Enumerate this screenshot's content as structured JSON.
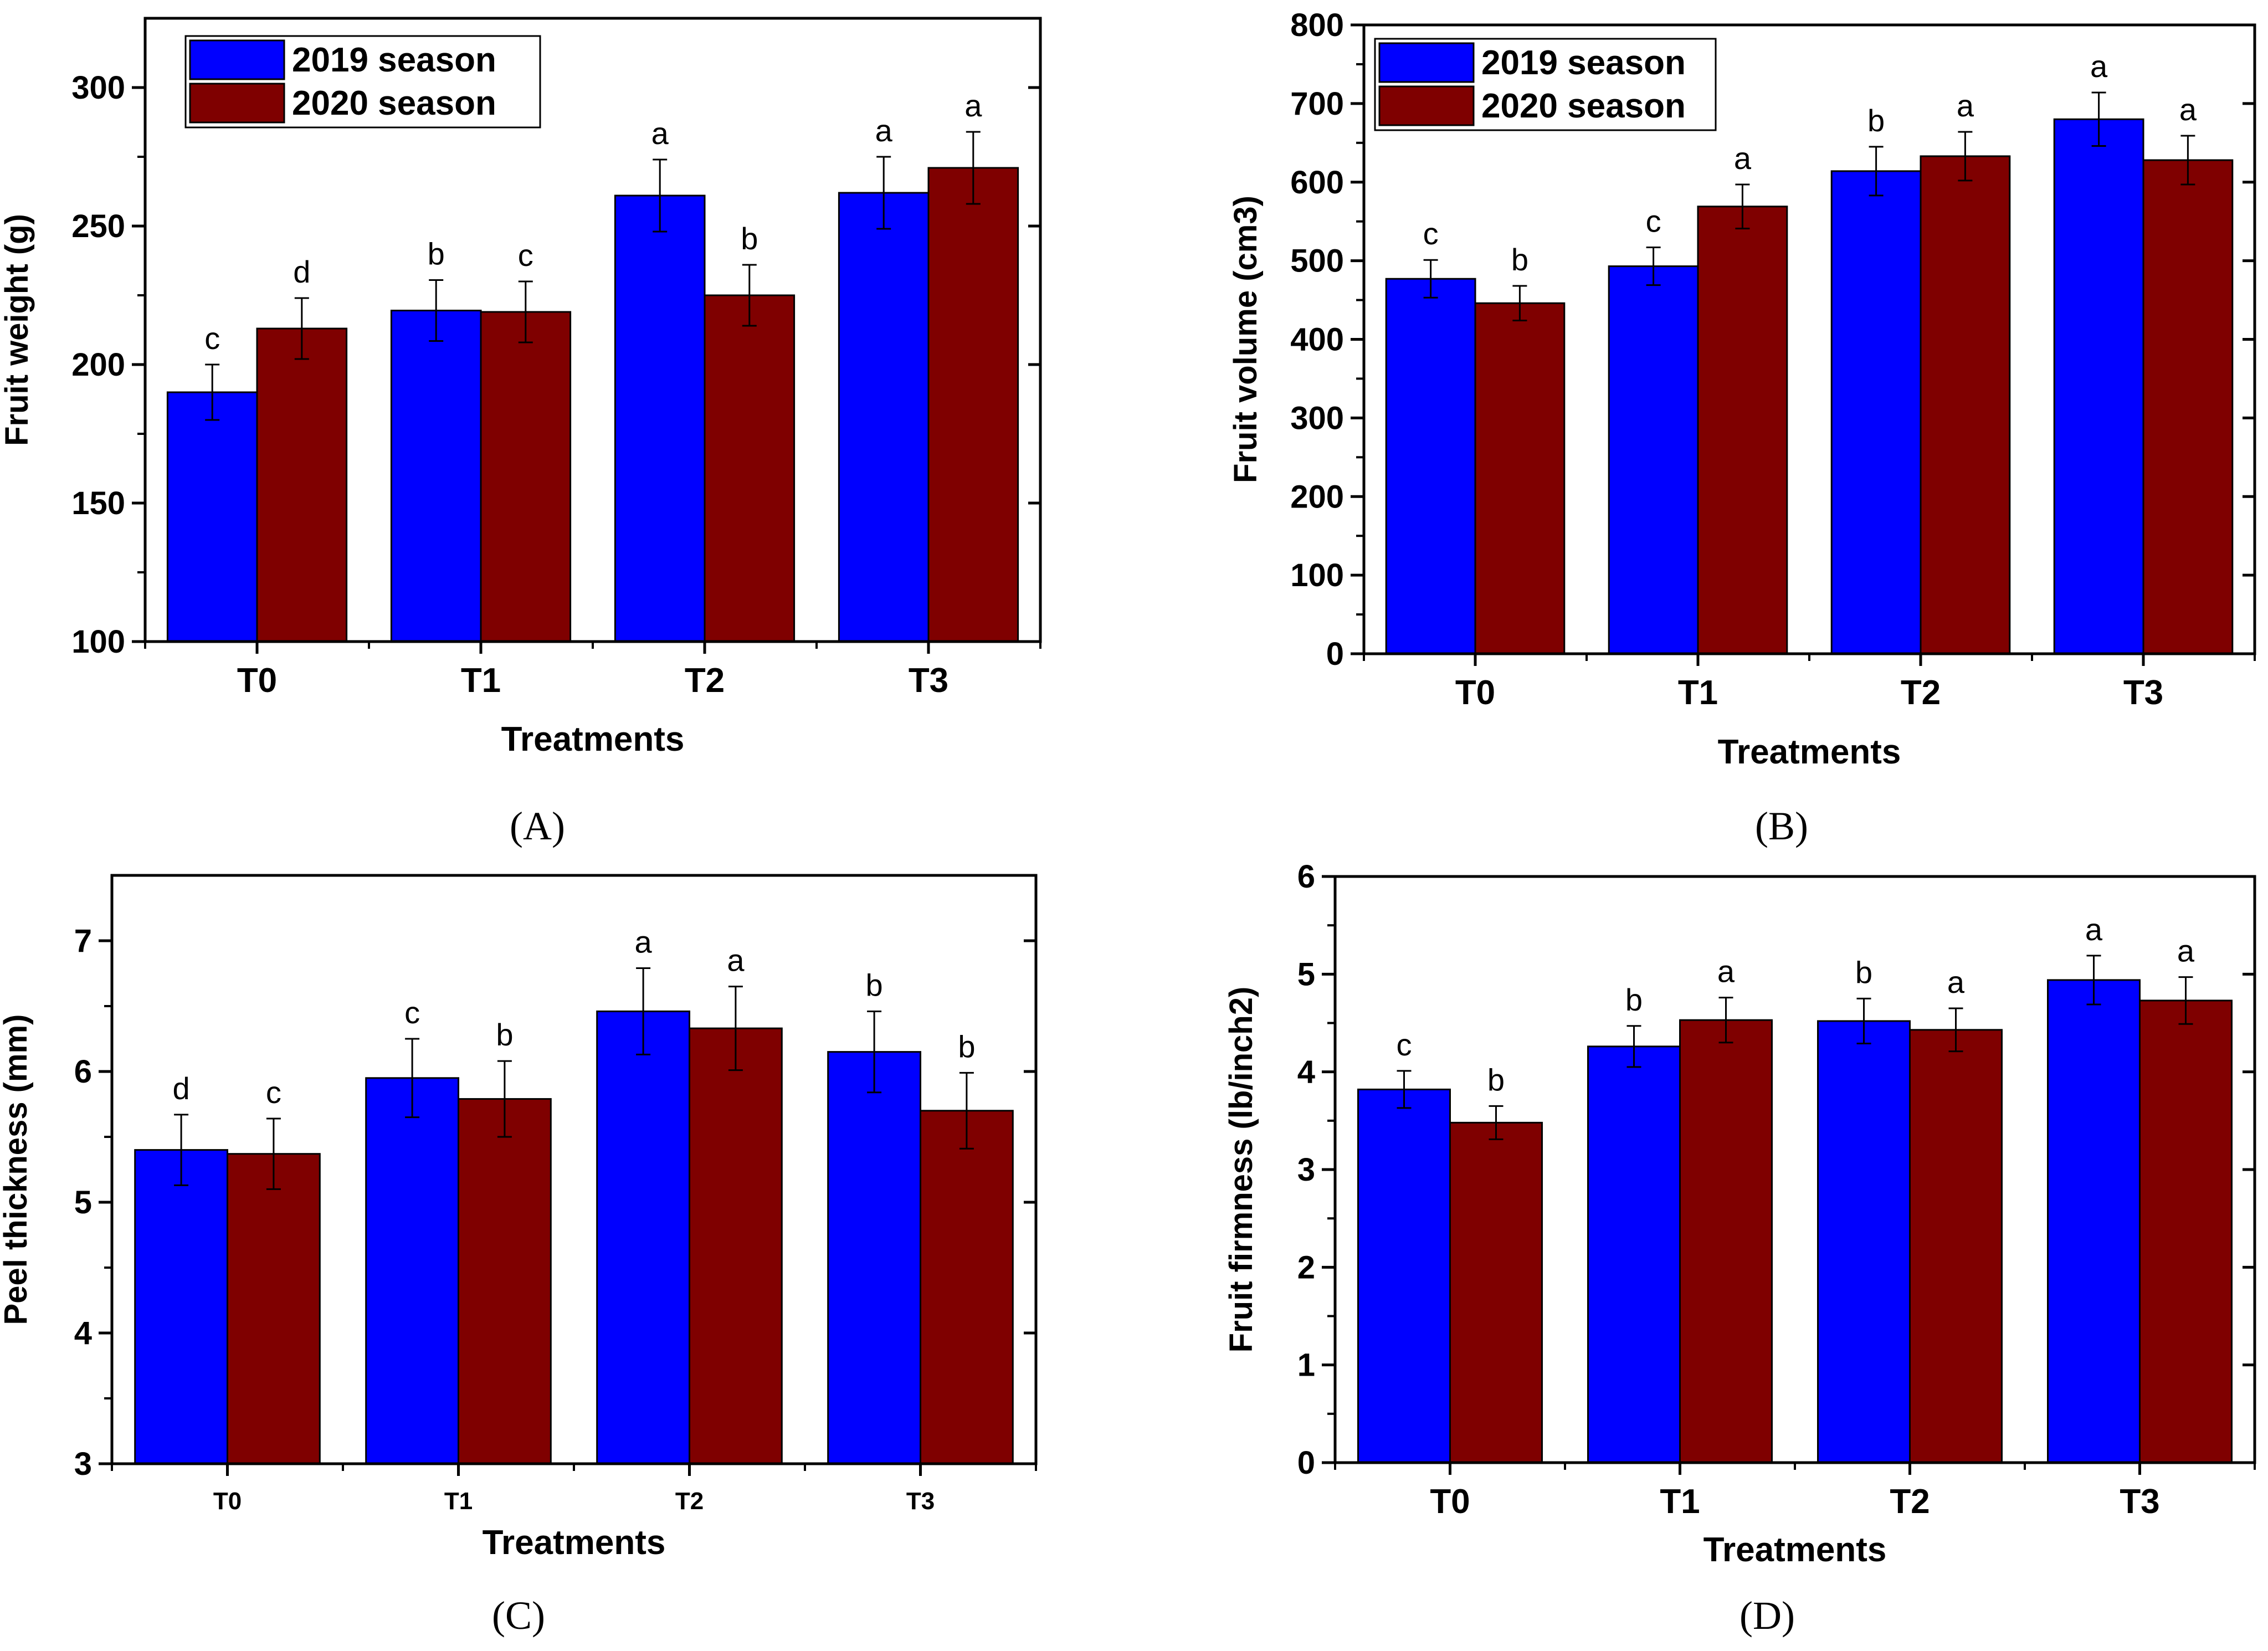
{
  "chart_data": [
    {
      "type": "bar",
      "panel": "A",
      "categories": [
        "T0",
        "T1",
        "T2",
        "T3"
      ],
      "xlabel": "Treatments",
      "ylabel": "Fruit weight (g)",
      "ylim": [
        100,
        325
      ],
      "yticks": [
        100,
        150,
        200,
        250,
        300
      ],
      "legend_position": "top-left",
      "series": [
        {
          "name": "2019 season",
          "color": "#0000ff",
          "values": [
            190,
            219.5,
            261,
            262
          ],
          "errors": [
            10,
            11,
            13,
            13
          ],
          "letters": [
            "c",
            "b",
            "a",
            "a"
          ]
        },
        {
          "name": "2020 season",
          "color": "#7f0000",
          "values": [
            213,
            219,
            225,
            271
          ],
          "errors": [
            11,
            11,
            11,
            13
          ],
          "letters": [
            "d",
            "c",
            "b",
            "a"
          ]
        }
      ]
    },
    {
      "type": "bar",
      "panel": "B",
      "categories": [
        "T0",
        "T1",
        "T2",
        "T3"
      ],
      "xlabel": "Treatments",
      "ylabel": "Fruit volume (cm3)",
      "ylim": [
        0,
        800
      ],
      "yticks": [
        0,
        100,
        200,
        300,
        400,
        500,
        600,
        700,
        800
      ],
      "legend_position": "top-left",
      "series": [
        {
          "name": "2019 season",
          "color": "#0000ff",
          "values": [
            477,
            493,
            614,
            680
          ],
          "errors": [
            24,
            24,
            31,
            34
          ],
          "letters": [
            "c",
            "c",
            "b",
            "a"
          ]
        },
        {
          "name": "2020 season",
          "color": "#7f0000",
          "values": [
            446,
            569,
            633,
            628
          ],
          "errors": [
            22,
            28,
            31,
            31
          ],
          "letters": [
            "b",
            "a",
            "a",
            "a"
          ]
        }
      ]
    },
    {
      "type": "bar",
      "panel": "C",
      "categories": [
        "T0",
        "T1",
        "T2",
        "T3"
      ],
      "xlabel": "Treatments",
      "ylabel": "Peel thickness (mm)",
      "ylim": [
        3,
        7.5
      ],
      "yticks": [
        3,
        4,
        5,
        6,
        7
      ],
      "series": [
        {
          "name": "2019 season",
          "color": "#0000ff",
          "values": [
            5.4,
            5.95,
            6.46,
            6.15
          ],
          "errors": [
            0.27,
            0.3,
            0.33,
            0.31
          ],
          "letters": [
            "d",
            "c",
            "a",
            "b"
          ]
        },
        {
          "name": "2020 season",
          "color": "#7f0000",
          "values": [
            5.37,
            5.79,
            6.33,
            5.7
          ],
          "errors": [
            0.27,
            0.29,
            0.32,
            0.29
          ],
          "letters": [
            "c",
            "b",
            "a",
            "b"
          ]
        }
      ]
    },
    {
      "type": "bar",
      "panel": "D",
      "categories": [
        "T0",
        "T1",
        "T2",
        "T3"
      ],
      "xlabel": "Treatments",
      "ylabel": "Fruit firmness (lb/inch2)",
      "ylim": [
        0,
        6
      ],
      "yticks": [
        0,
        1,
        2,
        3,
        4,
        5,
        6
      ],
      "series": [
        {
          "name": "2019 season",
          "color": "#0000ff",
          "values": [
            3.82,
            4.26,
            4.52,
            4.94
          ],
          "errors": [
            0.19,
            0.21,
            0.23,
            0.25
          ],
          "letters": [
            "c",
            "b",
            "b",
            "a"
          ]
        },
        {
          "name": "2020 season",
          "color": "#7f0000",
          "values": [
            3.48,
            4.53,
            4.43,
            4.73
          ],
          "errors": [
            0.17,
            0.23,
            0.22,
            0.24
          ],
          "letters": [
            "b",
            "a",
            "a",
            "a"
          ]
        }
      ]
    }
  ],
  "panel_labels": [
    "(A)",
    "(B)",
    "(C)",
    "(D)"
  ]
}
